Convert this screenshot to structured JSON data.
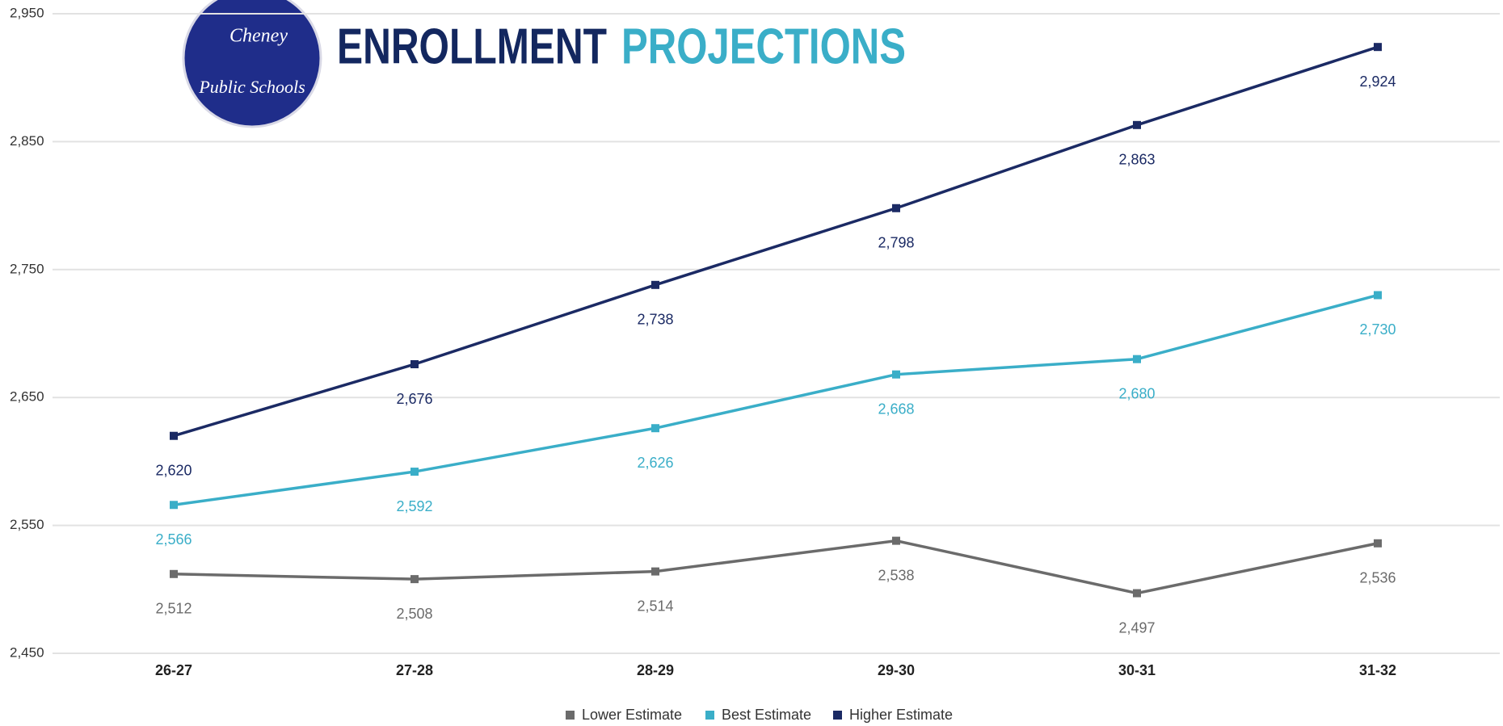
{
  "logo": {
    "line1": "Cheney",
    "line2": "Public Schools"
  },
  "chart_data": {
    "type": "line",
    "title": [
      "ENROLLMENT",
      "PROJECTIONS"
    ],
    "title_colors": [
      "#13275f",
      "#3aaec8"
    ],
    "categories": [
      "26-27",
      "27-28",
      "28-29",
      "29-30",
      "30-31",
      "31-32"
    ],
    "series": [
      {
        "name": "Lower Estimate",
        "color": "#6b6b6b",
        "values": [
          2512,
          2508,
          2514,
          2538,
          2497,
          2536
        ],
        "value_labels": [
          "2,512",
          "2,508",
          "2,514",
          "2,538",
          "2,497",
          "2,536"
        ]
      },
      {
        "name": "Best Estimate",
        "color": "#3aaec8",
        "values": [
          2566,
          2592,
          2626,
          2668,
          2680,
          2730
        ],
        "value_labels": [
          "2,566",
          "2,592",
          "2,626",
          "2,668",
          "2,680",
          "2,730"
        ]
      },
      {
        "name": "Higher Estimate",
        "color": "#1b2a64",
        "values": [
          2620,
          2676,
          2738,
          2798,
          2863,
          2924
        ],
        "value_labels": [
          "2,620",
          "2,676",
          "2,738",
          "2,798",
          "2,863",
          "2,924"
        ]
      }
    ],
    "ylim": [
      2450,
      2950
    ],
    "yticks": [
      {
        "value": 2450,
        "label": "2,450"
      },
      {
        "value": 2550,
        "label": "2,550"
      },
      {
        "value": 2650,
        "label": "2,650"
      },
      {
        "value": 2750,
        "label": "2,750"
      },
      {
        "value": 2850,
        "label": "2,850"
      },
      {
        "value": 2950,
        "label": "2,950"
      }
    ],
    "grid": true,
    "legend": "bottom"
  }
}
